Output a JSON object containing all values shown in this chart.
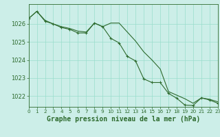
{
  "title": "Graphe pression niveau de la mer (hPa)",
  "background_color": "#cceee8",
  "grid_color": "#99ddcc",
  "line_color": "#2d6a2d",
  "hours": [
    0,
    1,
    2,
    3,
    4,
    5,
    6,
    7,
    8,
    9,
    10,
    11,
    12,
    13,
    14,
    15,
    16,
    17,
    18,
    19,
    20,
    21,
    22,
    23
  ],
  "series1": [
    1026.3,
    1026.7,
    1026.2,
    1026.0,
    1025.85,
    1025.75,
    1025.6,
    1025.55,
    1026.05,
    1025.85,
    1026.05,
    1026.05,
    1025.55,
    1025.05,
    1024.45,
    1024.0,
    1023.5,
    1022.25,
    1022.05,
    1021.85,
    1021.6,
    1021.9,
    1021.82,
    1021.68
  ],
  "series2": [
    1026.3,
    1026.7,
    1026.15,
    1026.0,
    1025.8,
    1025.7,
    1025.5,
    1025.5,
    1026.05,
    1025.85,
    1025.2,
    1024.95,
    1024.2,
    1023.95,
    1022.95,
    1022.75,
    1022.75,
    1022.15,
    1021.88,
    1021.5,
    1021.48,
    1021.9,
    1021.78,
    1021.6
  ],
  "ylim": [
    1021.4,
    1027.1
  ],
  "yticks": [
    1022,
    1023,
    1024,
    1025,
    1026
  ],
  "ylabel_fontsize": 6,
  "xlabel_fontsize": 7,
  "tick_fontsize": 6,
  "xtick_fontsize": 5.2
}
